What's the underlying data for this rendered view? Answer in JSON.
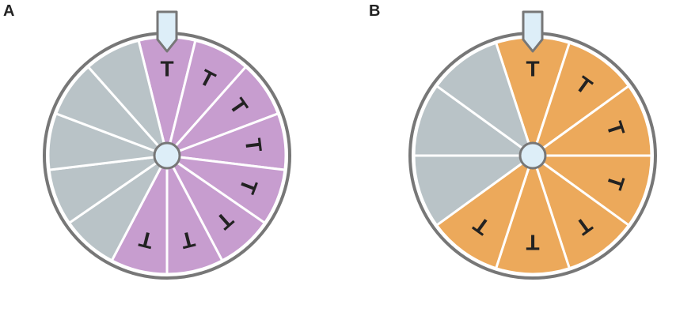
{
  "panels": [
    {
      "label": "A",
      "color": "#c79dcf",
      "labels": [
        "T",
        "T",
        "T",
        "T",
        "T",
        "T",
        "T",
        "T"
      ],
      "blank_segments": 5
    },
    {
      "label": "B",
      "color": "#eca95b",
      "labels": [
        "T",
        "T",
        "T",
        "T",
        "T",
        "T",
        "T"
      ],
      "blank_segments": 3
    }
  ]
}
